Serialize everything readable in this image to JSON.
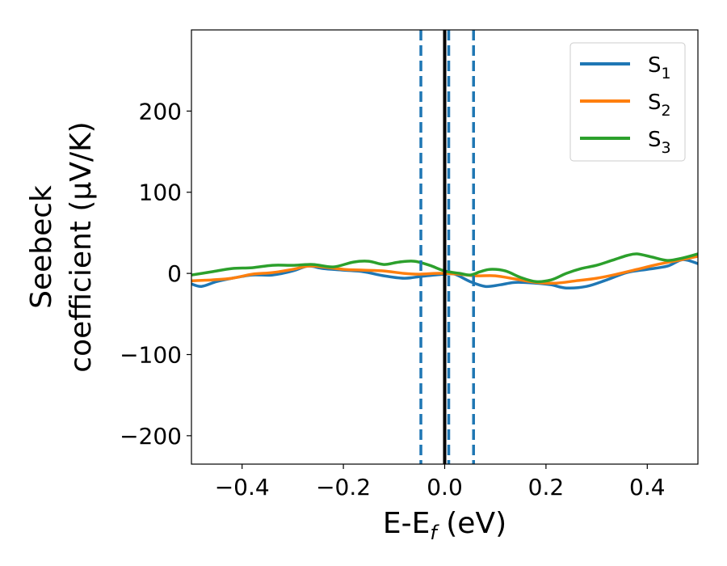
{
  "chart_data": {
    "type": "line",
    "title": "",
    "xlabel": {
      "main": "E-E",
      "sub": "f",
      "suffix": " (eV)"
    },
    "ylabel": {
      "line1": "Seebeck",
      "line2": "coefficient  (μV/K)"
    },
    "xlim": [
      -0.5,
      0.5
    ],
    "ylim": [
      -235,
      300
    ],
    "xticks": [
      -0.4,
      -0.2,
      0.0,
      0.2,
      0.4
    ],
    "xtick_labels": [
      "−0.4",
      "−0.2",
      "0.0",
      "0.2",
      "0.4"
    ],
    "yticks": [
      -200,
      -100,
      0,
      100,
      200
    ],
    "ytick_labels": [
      "−200",
      "−100",
      "0",
      "100",
      "200"
    ],
    "grid": false,
    "legend": "top-right",
    "vlines": [
      {
        "x": 0.0,
        "style": "solid",
        "color": "#000000"
      },
      {
        "x": -0.047,
        "style": "dashed",
        "color": "#1f77b4"
      },
      {
        "x": 0.008,
        "style": "dashed",
        "color": "#1f77b4"
      },
      {
        "x": 0.057,
        "style": "dashed",
        "color": "#1f77b4"
      }
    ],
    "series": [
      {
        "name": "S",
        "sub": "1",
        "color": "#1f77b4",
        "x": [
          -0.5,
          -0.48,
          -0.45,
          -0.42,
          -0.38,
          -0.34,
          -0.3,
          -0.27,
          -0.24,
          -0.2,
          -0.16,
          -0.12,
          -0.08,
          -0.05,
          -0.02,
          0.0,
          0.02,
          0.05,
          0.08,
          0.11,
          0.14,
          0.18,
          0.21,
          0.24,
          0.28,
          0.32,
          0.36,
          0.4,
          0.44,
          0.47,
          0.5
        ],
        "y": [
          -13,
          -16,
          -10,
          -6,
          -2,
          -2,
          3,
          9,
          6,
          4,
          2,
          -3,
          -6,
          -4,
          -2,
          -1,
          -1,
          -10,
          -16,
          -14,
          -11,
          -12,
          -14,
          -18,
          -16,
          -8,
          1,
          5,
          9,
          17,
          12
        ]
      },
      {
        "name": "S",
        "sub": "2",
        "color": "#ff7f0e",
        "x": [
          -0.5,
          -0.46,
          -0.42,
          -0.38,
          -0.34,
          -0.3,
          -0.27,
          -0.24,
          -0.2,
          -0.16,
          -0.12,
          -0.08,
          -0.05,
          -0.02,
          0.0,
          0.03,
          0.06,
          0.1,
          0.14,
          0.18,
          0.22,
          0.26,
          0.3,
          0.34,
          0.38,
          0.42,
          0.46,
          0.5
        ],
        "y": [
          -9,
          -8,
          -6,
          -1,
          1,
          5,
          9,
          8,
          5,
          4,
          3,
          0,
          -1,
          0,
          0,
          -1,
          -3,
          -3,
          -7,
          -11,
          -12,
          -9,
          -6,
          -1,
          5,
          11,
          16,
          21
        ]
      },
      {
        "name": "S",
        "sub": "3",
        "color": "#2ca02c",
        "x": [
          -0.5,
          -0.46,
          -0.42,
          -0.38,
          -0.34,
          -0.3,
          -0.26,
          -0.22,
          -0.18,
          -0.15,
          -0.12,
          -0.09,
          -0.06,
          -0.03,
          0.0,
          0.03,
          0.05,
          0.07,
          0.09,
          0.12,
          0.15,
          0.18,
          0.21,
          0.24,
          0.27,
          0.3,
          0.33,
          0.36,
          0.38,
          0.41,
          0.44,
          0.47,
          0.5
        ],
        "y": [
          -2,
          2,
          6,
          7,
          10,
          10,
          11,
          8,
          14,
          15,
          11,
          14,
          15,
          10,
          3,
          0,
          -2,
          2,
          5,
          3,
          -5,
          -10,
          -8,
          0,
          6,
          10,
          16,
          22,
          24,
          20,
          16,
          19,
          24
        ]
      }
    ]
  }
}
